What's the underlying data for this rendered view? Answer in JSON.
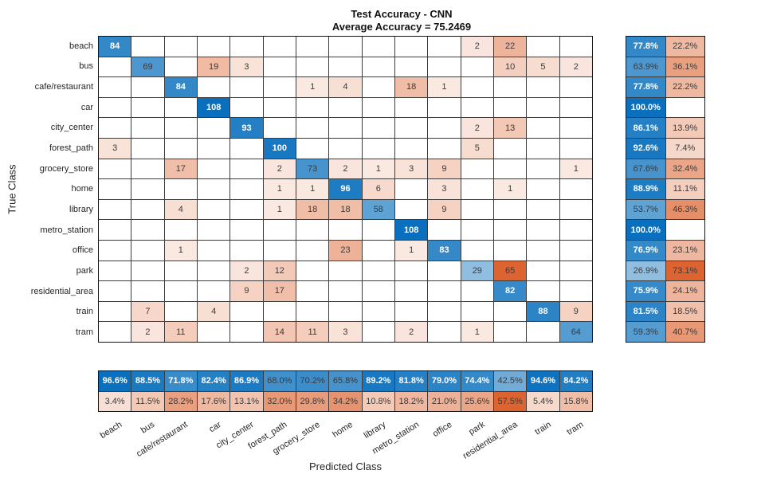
{
  "title": {
    "line1": "Test Accuracy - CNN",
    "line2": "Average Accuracy = 75.2469"
  },
  "axes": {
    "x_label": "Predicted Class",
    "y_label": "True Class"
  },
  "chart_data": {
    "type": "heatmap",
    "subtype": "confusion-matrix",
    "classes": [
      "beach",
      "bus",
      "cafe/restaurant",
      "car",
      "city_center",
      "forest_path",
      "grocery_store",
      "home",
      "library",
      "metro_station",
      "office",
      "park",
      "residential_area",
      "train",
      "tram"
    ],
    "matrix": [
      [
        84,
        0,
        0,
        0,
        0,
        0,
        0,
        0,
        0,
        0,
        0,
        2,
        22,
        0,
        0
      ],
      [
        0,
        69,
        0,
        19,
        3,
        0,
        0,
        0,
        0,
        0,
        0,
        0,
        10,
        5,
        2
      ],
      [
        0,
        0,
        84,
        0,
        0,
        0,
        1,
        4,
        0,
        18,
        1,
        0,
        0,
        0,
        0
      ],
      [
        0,
        0,
        0,
        108,
        0,
        0,
        0,
        0,
        0,
        0,
        0,
        0,
        0,
        0,
        0
      ],
      [
        0,
        0,
        0,
        0,
        93,
        0,
        0,
        0,
        0,
        0,
        0,
        2,
        13,
        0,
        0
      ],
      [
        3,
        0,
        0,
        0,
        0,
        100,
        0,
        0,
        0,
        0,
        0,
        5,
        0,
        0,
        0
      ],
      [
        0,
        0,
        17,
        0,
        0,
        2,
        73,
        2,
        1,
        3,
        9,
        0,
        0,
        0,
        1
      ],
      [
        0,
        0,
        0,
        0,
        0,
        1,
        1,
        96,
        6,
        0,
        3,
        0,
        1,
        0,
        0
      ],
      [
        0,
        0,
        4,
        0,
        0,
        1,
        18,
        18,
        58,
        0,
        9,
        0,
        0,
        0,
        0
      ],
      [
        0,
        0,
        0,
        0,
        0,
        0,
        0,
        0,
        0,
        108,
        0,
        0,
        0,
        0,
        0
      ],
      [
        0,
        0,
        1,
        0,
        0,
        0,
        0,
        23,
        0,
        1,
        83,
        0,
        0,
        0,
        0
      ],
      [
        0,
        0,
        0,
        0,
        2,
        12,
        0,
        0,
        0,
        0,
        0,
        29,
        65,
        0,
        0
      ],
      [
        0,
        0,
        0,
        0,
        9,
        17,
        0,
        0,
        0,
        0,
        0,
        0,
        82,
        0,
        0
      ],
      [
        0,
        7,
        0,
        4,
        0,
        0,
        0,
        0,
        0,
        0,
        0,
        0,
        0,
        88,
        9
      ],
      [
        0,
        2,
        11,
        0,
        0,
        14,
        11,
        3,
        0,
        2,
        0,
        1,
        0,
        0,
        64
      ]
    ],
    "row_summary": {
      "correct_pct": [
        77.8,
        63.9,
        77.8,
        100.0,
        86.1,
        92.6,
        67.6,
        88.9,
        53.7,
        100.0,
        76.9,
        26.9,
        75.9,
        81.5,
        59.3
      ],
      "incorrect_pct": [
        22.2,
        36.1,
        22.2,
        null,
        13.9,
        7.4,
        32.4,
        11.1,
        46.3,
        null,
        23.1,
        73.1,
        24.1,
        18.5,
        40.7
      ]
    },
    "column_summary": {
      "correct_pct": [
        96.6,
        88.5,
        71.8,
        82.4,
        86.9,
        68.0,
        70.2,
        65.8,
        89.2,
        81.8,
        79.0,
        74.4,
        42.5,
        94.6,
        84.2
      ],
      "incorrect_pct": [
        3.4,
        11.5,
        28.2,
        17.6,
        13.1,
        32.0,
        29.8,
        34.2,
        10.8,
        18.2,
        21.0,
        25.6,
        57.5,
        5.4,
        15.8
      ]
    },
    "colors": {
      "correct_blue": "#0a70bd",
      "incorrect_orange": "#d95319",
      "grid_line": "#3c3c3c",
      "text_dark": "#3a3a3a",
      "text_light": "#ffffff"
    },
    "layout_hints": {
      "row_summary_position": "right",
      "column_summary_position": "bottom",
      "x_tick_rotation_deg": -32
    }
  }
}
